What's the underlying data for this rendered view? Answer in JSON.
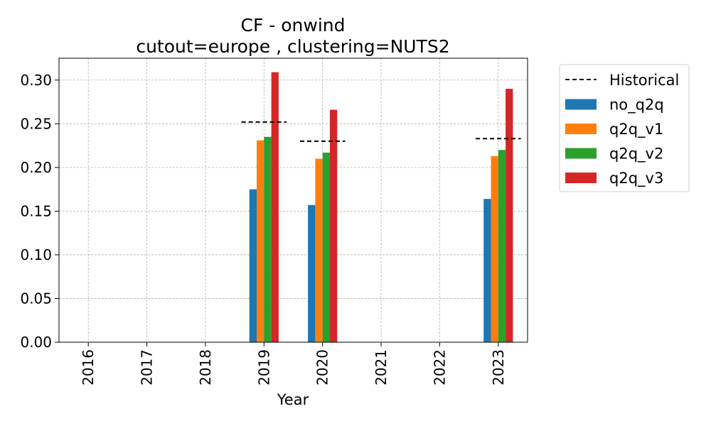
{
  "chart_data": {
    "type": "bar",
    "title_line1": "CF - onwind",
    "title_line2": "cutout=europe , clustering=NUTS2",
    "xlabel": "Year",
    "ylabel": "",
    "ylim": [
      0,
      0.325
    ],
    "yticks": [
      "0.00",
      "0.05",
      "0.10",
      "0.15",
      "0.20",
      "0.25",
      "0.30"
    ],
    "ytick_values": [
      0,
      0.05,
      0.1,
      0.15,
      0.2,
      0.25,
      0.3
    ],
    "grid": true,
    "legend_position": "outside-right-top",
    "categories": [
      "2016",
      "2017",
      "2018",
      "2019",
      "2020",
      "2021",
      "2022",
      "2023"
    ],
    "series": [
      {
        "name": "no_q2q",
        "color": "#1f77b4",
        "values": [
          null,
          null,
          null,
          0.175,
          0.157,
          null,
          null,
          0.164
        ]
      },
      {
        "name": "q2q_v1",
        "color": "#ff7f0e",
        "values": [
          null,
          null,
          null,
          0.231,
          0.21,
          null,
          null,
          0.213
        ]
      },
      {
        "name": "q2q_v2",
        "color": "#2ca02c",
        "values": [
          null,
          null,
          null,
          0.235,
          0.217,
          null,
          null,
          0.22
        ]
      },
      {
        "name": "q2q_v3",
        "color": "#d62728",
        "values": [
          null,
          null,
          null,
          0.309,
          0.266,
          null,
          null,
          0.29
        ]
      }
    ],
    "historical": {
      "name": "Historical",
      "color": "#000000",
      "values": [
        null,
        null,
        null,
        0.252,
        0.23,
        null,
        null,
        0.233
      ]
    }
  }
}
